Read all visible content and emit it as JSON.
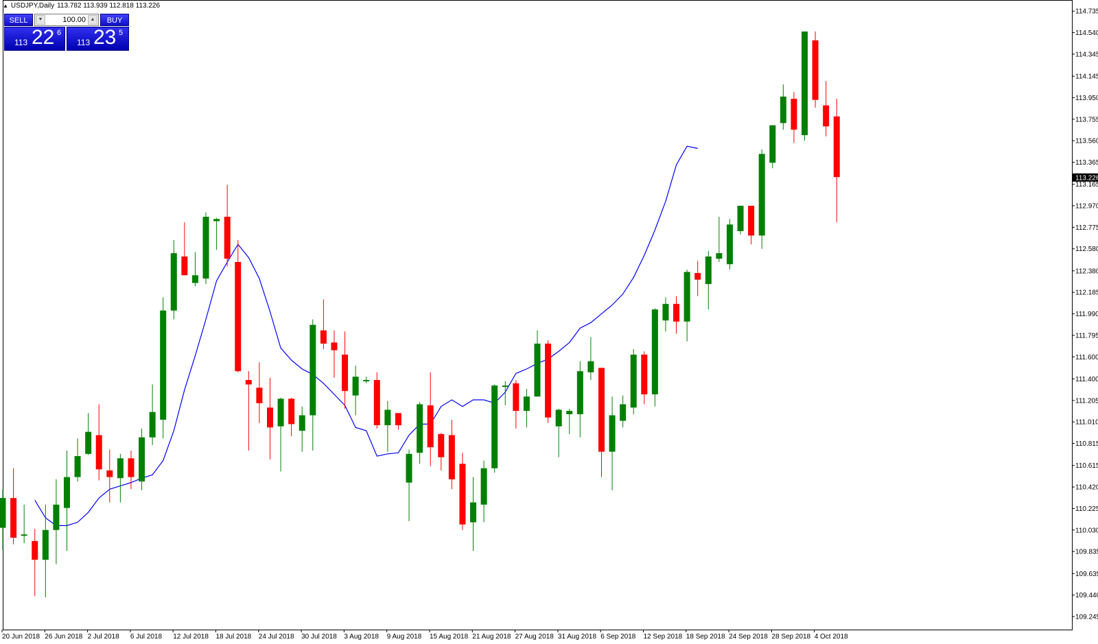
{
  "header": {
    "symbol": "USDJPY,Daily",
    "ohlc": "113.782 113.939 112.818 113.226"
  },
  "trade_panel": {
    "sell_label": "SELL",
    "buy_label": "BUY",
    "lot": "100.00",
    "sell_price": {
      "small": "113",
      "big": "22",
      "sup": "6"
    },
    "buy_price": {
      "small": "113",
      "big": "23",
      "sup": "5"
    }
  },
  "colors": {
    "bull": "#008000",
    "bear": "#ff0000",
    "ma": "#0000ff",
    "current_price_bg": "#000000"
  },
  "chart_data": {
    "type": "candlestick",
    "title": "USDJPY,Daily",
    "ylim": [
      109.245,
      114.73
    ],
    "yticks": [
      "114.735",
      "114.540",
      "114.345",
      "114.145",
      "113.950",
      "113.755",
      "113.560",
      "113.365",
      "113.165",
      "112.970",
      "112.775",
      "112.580",
      "112.380",
      "112.185",
      "111.990",
      "111.795",
      "111.600",
      "111.400",
      "111.205",
      "111.010",
      "110.815",
      "110.615",
      "110.420",
      "110.225",
      "110.030",
      "109.835",
      "109.635",
      "109.440",
      "109.245"
    ],
    "current_price": "113.226",
    "xlabels": [
      "20 Jun 2018",
      "26 Jun 2018",
      "2 Jul 2018",
      "6 Jul 2018",
      "12 Jul 2018",
      "18 Jul 2018",
      "24 Jul 2018",
      "30 Jul 2018",
      "3 Aug 2018",
      "9 Aug 2018",
      "15 Aug 2018",
      "21 Aug 2018",
      "27 Aug 2018",
      "31 Aug 2018",
      "6 Sep 2018",
      "12 Sep 2018",
      "18 Sep 2018",
      "24 Sep 2018",
      "28 Sep 2018",
      "4 Oct 2018"
    ],
    "candles": [
      {
        "o": 110.05,
        "h": 110.4,
        "l": 109.85,
        "c": 110.32
      },
      {
        "o": 110.32,
        "h": 110.59,
        "l": 109.9,
        "c": 109.96
      },
      {
        "o": 109.98,
        "h": 110.26,
        "l": 109.91,
        "c": 109.99
      },
      {
        "o": 109.93,
        "h": 110.04,
        "l": 109.43,
        "c": 109.76
      },
      {
        "o": 109.76,
        "h": 110.26,
        "l": 109.42,
        "c": 110.03
      },
      {
        "o": 110.03,
        "h": 110.49,
        "l": 109.72,
        "c": 110.26
      },
      {
        "o": 110.23,
        "h": 110.75,
        "l": 109.84,
        "c": 110.51
      },
      {
        "o": 110.51,
        "h": 110.86,
        "l": 110.47,
        "c": 110.7
      },
      {
        "o": 110.72,
        "h": 111.09,
        "l": 110.71,
        "c": 110.92
      },
      {
        "o": 110.89,
        "h": 111.17,
        "l": 110.48,
        "c": 110.58
      },
      {
        "o": 110.57,
        "h": 110.76,
        "l": 110.28,
        "c": 110.51
      },
      {
        "o": 110.5,
        "h": 110.72,
        "l": 110.28,
        "c": 110.68
      },
      {
        "o": 110.68,
        "h": 110.75,
        "l": 110.4,
        "c": 110.51
      },
      {
        "o": 110.47,
        "h": 110.95,
        "l": 110.39,
        "c": 110.87
      },
      {
        "o": 110.87,
        "h": 111.35,
        "l": 110.8,
        "c": 111.1
      },
      {
        "o": 111.03,
        "h": 112.14,
        "l": 110.86,
        "c": 112.02
      },
      {
        "o": 112.02,
        "h": 112.66,
        "l": 111.94,
        "c": 112.54
      },
      {
        "o": 112.51,
        "h": 112.82,
        "l": 112.34,
        "c": 112.34
      },
      {
        "o": 112.27,
        "h": 112.55,
        "l": 112.24,
        "c": 112.34
      },
      {
        "o": 112.31,
        "h": 112.91,
        "l": 112.26,
        "c": 112.87
      },
      {
        "o": 112.83,
        "h": 112.86,
        "l": 112.57,
        "c": 112.85
      },
      {
        "o": 112.87,
        "h": 113.16,
        "l": 112.42,
        "c": 112.49
      },
      {
        "o": 112.46,
        "h": 112.66,
        "l": 111.46,
        "c": 111.47
      },
      {
        "o": 111.39,
        "h": 111.47,
        "l": 110.75,
        "c": 111.35
      },
      {
        "o": 111.32,
        "h": 111.55,
        "l": 111.0,
        "c": 111.18
      },
      {
        "o": 111.14,
        "h": 111.41,
        "l": 110.67,
        "c": 110.96
      },
      {
        "o": 110.97,
        "h": 111.23,
        "l": 110.56,
        "c": 111.22
      },
      {
        "o": 111.22,
        "h": 111.23,
        "l": 110.88,
        "c": 110.99
      },
      {
        "o": 110.93,
        "h": 111.15,
        "l": 110.74,
        "c": 111.07
      },
      {
        "o": 111.07,
        "h": 111.94,
        "l": 110.75,
        "c": 111.89
      },
      {
        "o": 111.84,
        "h": 112.12,
        "l": 111.67,
        "c": 111.72
      },
      {
        "o": 111.73,
        "h": 111.84,
        "l": 111.41,
        "c": 111.66
      },
      {
        "o": 111.62,
        "h": 111.83,
        "l": 111.13,
        "c": 111.29
      },
      {
        "o": 111.25,
        "h": 111.52,
        "l": 111.07,
        "c": 111.42
      },
      {
        "o": 111.39,
        "h": 111.42,
        "l": 111.36,
        "c": 111.39
      },
      {
        "o": 111.39,
        "h": 111.46,
        "l": 110.95,
        "c": 110.98
      },
      {
        "o": 110.98,
        "h": 111.2,
        "l": 110.74,
        "c": 111.12
      },
      {
        "o": 111.09,
        "h": 111.09,
        "l": 110.94,
        "c": 110.98
      },
      {
        "o": 110.46,
        "h": 110.76,
        "l": 110.11,
        "c": 110.72
      },
      {
        "o": 110.73,
        "h": 111.19,
        "l": 110.63,
        "c": 111.17
      },
      {
        "o": 111.16,
        "h": 111.46,
        "l": 110.61,
        "c": 110.78
      },
      {
        "o": 110.9,
        "h": 110.91,
        "l": 110.57,
        "c": 110.69
      },
      {
        "o": 110.89,
        "h": 111.03,
        "l": 110.4,
        "c": 110.49
      },
      {
        "o": 110.63,
        "h": 110.73,
        "l": 110.03,
        "c": 110.08
      },
      {
        "o": 110.1,
        "h": 110.51,
        "l": 109.84,
        "c": 110.28
      },
      {
        "o": 110.26,
        "h": 110.66,
        "l": 110.1,
        "c": 110.59
      },
      {
        "o": 110.59,
        "h": 111.35,
        "l": 110.55,
        "c": 111.34
      },
      {
        "o": 111.34,
        "h": 111.38,
        "l": 111.16,
        "c": 111.34
      },
      {
        "o": 111.36,
        "h": 111.39,
        "l": 110.95,
        "c": 111.11
      },
      {
        "o": 111.11,
        "h": 111.31,
        "l": 110.96,
        "c": 111.24
      },
      {
        "o": 111.24,
        "h": 111.84,
        "l": 111.24,
        "c": 111.72
      },
      {
        "o": 111.72,
        "h": 111.75,
        "l": 111.0,
        "c": 111.05
      },
      {
        "o": 110.97,
        "h": 111.13,
        "l": 110.69,
        "c": 111.12
      },
      {
        "o": 111.08,
        "h": 111.13,
        "l": 110.9,
        "c": 111.11
      },
      {
        "o": 111.08,
        "h": 111.56,
        "l": 110.87,
        "c": 111.47
      },
      {
        "o": 111.46,
        "h": 111.78,
        "l": 111.39,
        "c": 111.56
      },
      {
        "o": 111.5,
        "h": 111.5,
        "l": 110.51,
        "c": 110.74
      },
      {
        "o": 110.74,
        "h": 111.24,
        "l": 110.39,
        "c": 111.07
      },
      {
        "o": 111.02,
        "h": 111.25,
        "l": 110.96,
        "c": 111.17
      },
      {
        "o": 111.14,
        "h": 111.67,
        "l": 111.08,
        "c": 111.62
      },
      {
        "o": 111.62,
        "h": 111.65,
        "l": 111.17,
        "c": 111.26
      },
      {
        "o": 111.26,
        "h": 112.04,
        "l": 111.15,
        "c": 112.03
      },
      {
        "o": 111.93,
        "h": 112.14,
        "l": 111.83,
        "c": 112.08
      },
      {
        "o": 112.08,
        "h": 112.15,
        "l": 111.81,
        "c": 111.92
      },
      {
        "o": 111.92,
        "h": 112.39,
        "l": 111.74,
        "c": 112.37
      },
      {
        "o": 112.36,
        "h": 112.47,
        "l": 112.15,
        "c": 112.3
      },
      {
        "o": 112.26,
        "h": 112.56,
        "l": 112.03,
        "c": 112.51
      },
      {
        "o": 112.49,
        "h": 112.87,
        "l": 112.46,
        "c": 112.54
      },
      {
        "o": 112.44,
        "h": 112.85,
        "l": 112.39,
        "c": 112.8
      },
      {
        "o": 112.74,
        "h": 112.97,
        "l": 112.71,
        "c": 112.97
      },
      {
        "o": 112.97,
        "h": 112.97,
        "l": 112.62,
        "c": 112.7
      },
      {
        "o": 112.7,
        "h": 113.48,
        "l": 112.58,
        "c": 113.44
      },
      {
        "o": 113.36,
        "h": 113.7,
        "l": 113.31,
        "c": 113.7
      },
      {
        "o": 113.72,
        "h": 114.07,
        "l": 113.66,
        "c": 113.96
      },
      {
        "o": 113.94,
        "h": 114.0,
        "l": 113.54,
        "c": 113.66
      },
      {
        "o": 113.61,
        "h": 114.55,
        "l": 113.56,
        "c": 114.55
      },
      {
        "o": 114.47,
        "h": 114.55,
        "l": 113.86,
        "c": 113.93
      },
      {
        "o": 113.88,
        "h": 114.1,
        "l": 113.6,
        "c": 113.69
      },
      {
        "o": 113.78,
        "h": 113.94,
        "l": 112.82,
        "c": 113.23
      }
    ],
    "ma": [
      110.3,
      110.14,
      110.07,
      110.07,
      110.1,
      110.19,
      110.32,
      110.4,
      110.43,
      110.46,
      110.5,
      110.53,
      110.66,
      110.93,
      111.3,
      111.61,
      111.94,
      112.29,
      112.46,
      112.62,
      112.5,
      112.31,
      112.01,
      111.68,
      111.57,
      111.49,
      111.44,
      111.36,
      111.26,
      111.16,
      110.96,
      110.93,
      110.7,
      110.72,
      110.73,
      110.89,
      110.99,
      110.99,
      111.15,
      111.21,
      111.15,
      111.21,
      111.21,
      111.18,
      111.28,
      111.45,
      111.49,
      111.54,
      111.58,
      111.65,
      111.73,
      111.86,
      111.91,
      111.99,
      112.07,
      112.17,
      112.32,
      112.52,
      112.75,
      113.01,
      113.34,
      113.51,
      113.49
    ]
  }
}
